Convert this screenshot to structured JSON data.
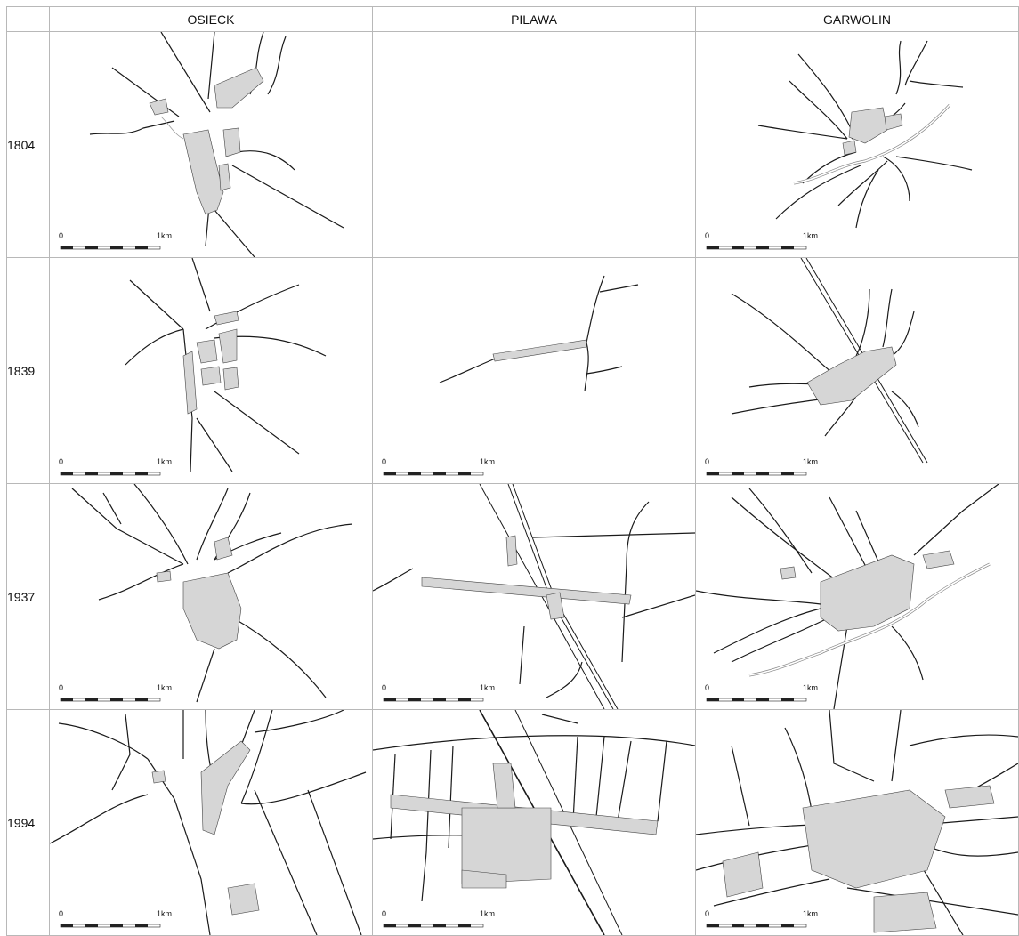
{
  "columns": [
    "OSIECK",
    "PILAWA",
    "GARWOLIN"
  ],
  "rows": [
    "1804",
    "1839",
    "1937",
    "1994"
  ],
  "scale_bar": {
    "start_label": "0",
    "end_label": "1km"
  },
  "colors": {
    "road": "#1a1a1a",
    "building_fill": "#cfcfcf",
    "building_stroke": "#555555",
    "river": "#9a9a9a",
    "grid_line": "#b8b8b8"
  }
}
